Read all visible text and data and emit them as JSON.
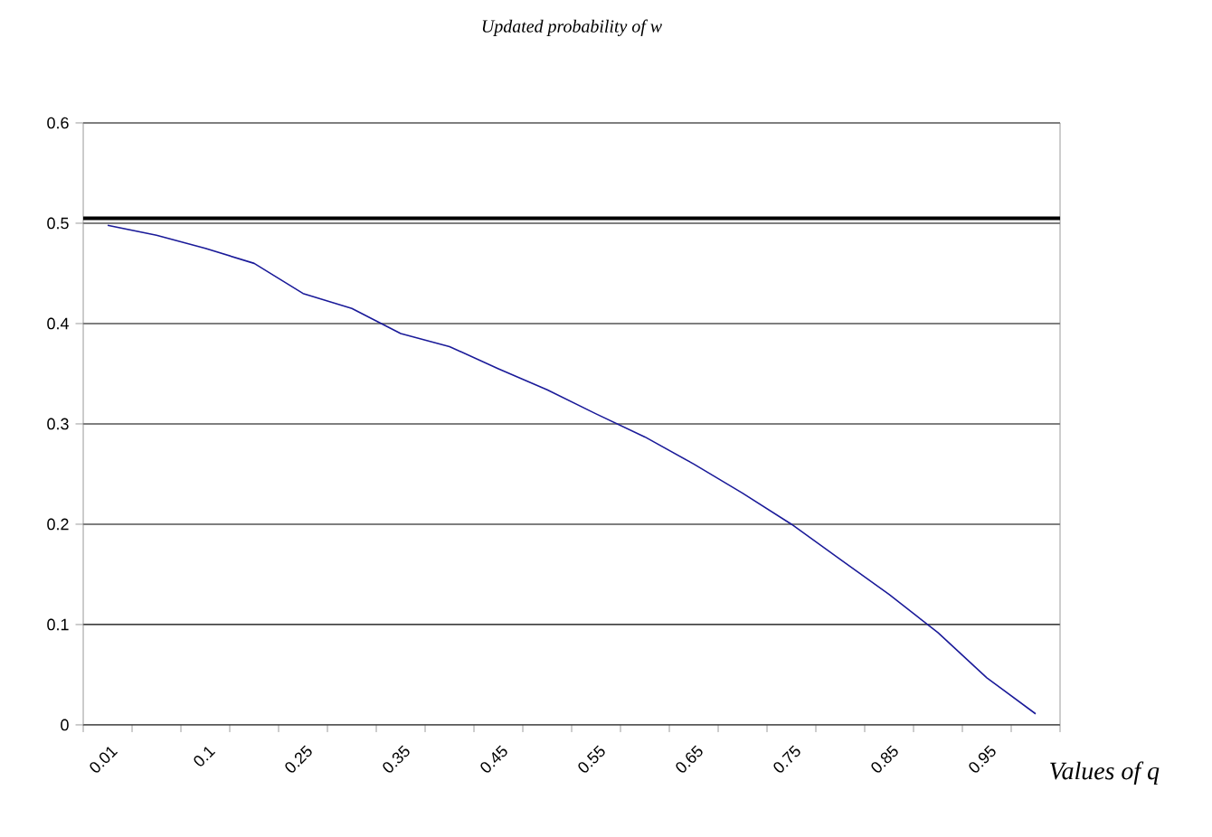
{
  "chart_data": {
    "type": "line",
    "title": "Updated probability of w",
    "xlabel": "Values of q",
    "categories": [
      "0.01",
      null,
      "0.1",
      null,
      "0.25",
      null,
      "0.35",
      null,
      "0.45",
      null,
      "0.55",
      null,
      "0.65",
      null,
      "0.75",
      null,
      "0.85",
      null,
      "0.95",
      null
    ],
    "series": [
      {
        "color": "#1a1a99",
        "values": [
          0.498,
          0.488,
          0.475,
          0.46,
          0.43,
          0.415,
          0.39,
          0.377,
          0.355,
          0.334,
          0.31,
          0.287,
          0.26,
          0.231,
          0.2,
          0.165,
          0.13,
          0.092,
          0.047,
          0.011
        ]
      }
    ],
    "ylim": [
      0,
      0.6
    ],
    "yticks": [
      0,
      0.1,
      0.2,
      0.3,
      0.4,
      0.5,
      0.6
    ],
    "grid": "y",
    "ref_lines": [
      {
        "axis": "y",
        "value": 0.505,
        "color": "#000000"
      }
    ]
  }
}
